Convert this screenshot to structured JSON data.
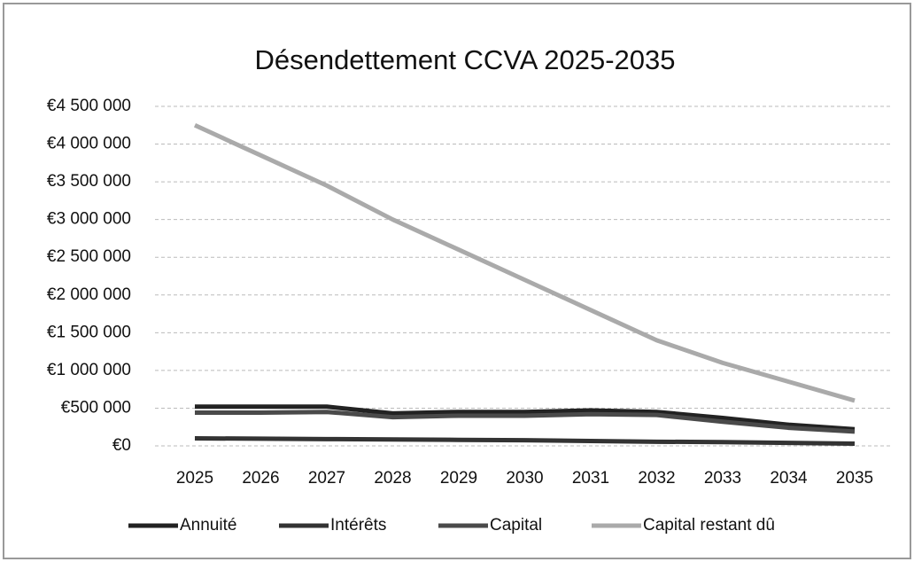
{
  "chart_data": {
    "type": "line",
    "title": "Désendettement CCVA 2025-2035",
    "categories": [
      "2025",
      "2026",
      "2027",
      "2028",
      "2029",
      "2030",
      "2031",
      "2032",
      "2033",
      "2034",
      "2035"
    ],
    "series": [
      {
        "name": "Annuité",
        "color": "#222222",
        "values": [
          520000,
          520000,
          520000,
          430000,
          450000,
          450000,
          470000,
          450000,
          370000,
          280000,
          220000
        ]
      },
      {
        "name": "Intérêts",
        "color": "#333333",
        "values": [
          100000,
          95000,
          90000,
          85000,
          80000,
          75000,
          65000,
          55000,
          50000,
          40000,
          30000
        ]
      },
      {
        "name": "Capital",
        "color": "#4a4a4a",
        "values": [
          440000,
          440000,
          450000,
          380000,
          400000,
          400000,
          420000,
          410000,
          320000,
          240000,
          190000
        ]
      },
      {
        "name": "Capital restant dû",
        "color": "#aaaaaa",
        "values": [
          4250000,
          3850000,
          3450000,
          3000000,
          2600000,
          2200000,
          1800000,
          1400000,
          1100000,
          850000,
          600000
        ]
      }
    ],
    "ylim": [
      0,
      4500000
    ],
    "yticks": [
      {
        "value": 0,
        "label": "€0"
      },
      {
        "value": 500000,
        "label": "€500 000"
      },
      {
        "value": 1000000,
        "label": "€1 000 000"
      },
      {
        "value": 1500000,
        "label": "€1 500 000"
      },
      {
        "value": 2000000,
        "label": "€2 000 000"
      },
      {
        "value": 2500000,
        "label": "€2 500 000"
      },
      {
        "value": 3000000,
        "label": "€3 000 000"
      },
      {
        "value": 3500000,
        "label": "€3 500 000"
      },
      {
        "value": 4000000,
        "label": "€4 000 000"
      },
      {
        "value": 4500000,
        "label": "€4 500 000"
      }
    ],
    "grid": true,
    "legend": "bottom"
  }
}
